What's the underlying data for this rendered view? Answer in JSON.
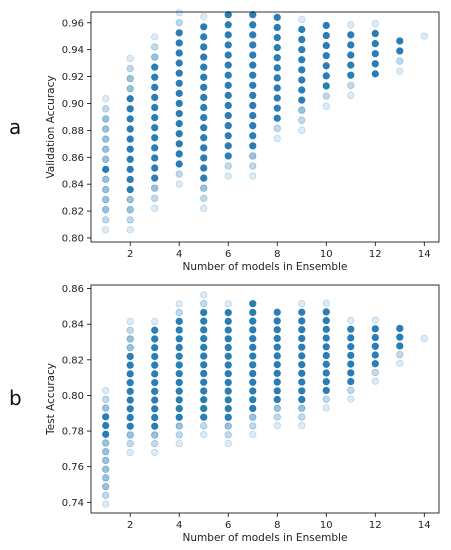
{
  "chart_data": [
    {
      "type": "scatter",
      "panel_label": "a",
      "xlabel": "Number of models in Ensemble",
      "ylabel": "Validation Accuracy",
      "xlim": [
        0.4,
        14.6
      ],
      "ylim": [
        0.797,
        0.968
      ],
      "x_ticks": [
        2,
        4,
        6,
        8,
        10,
        12,
        14
      ],
      "y_ticks": [
        0.8,
        0.82,
        0.84,
        0.86,
        0.88,
        0.9,
        0.92,
        0.94,
        0.96
      ],
      "y_tick_labels": [
        "0.80",
        "0.82",
        "0.84",
        "0.86",
        "0.88",
        "0.90",
        "0.92",
        "0.94",
        "0.96"
      ],
      "point_step": 0.0075,
      "point_color": "#1f77b4",
      "grid": false,
      "columns": [
        {
          "x": 1,
          "y_min": 0.806,
          "y_max": 0.906,
          "strong_min": 0.846,
          "strong_max": 0.856
        },
        {
          "x": 2,
          "y_min": 0.806,
          "y_max": 0.934,
          "strong_min": 0.836,
          "strong_max": 0.904
        },
        {
          "x": 3,
          "y_min": 0.822,
          "y_max": 0.95,
          "strong_min": 0.838,
          "strong_max": 0.934
        },
        {
          "x": 4,
          "y_min": 0.84,
          "y_max": 0.966,
          "strong_min": 0.848,
          "strong_max": 0.958
        },
        {
          "x": 5,
          "y_min": 0.822,
          "y_max": 0.966,
          "strong_min": 0.84,
          "strong_max": 0.958
        },
        {
          "x": 6,
          "y_min": 0.846,
          "y_max": 0.966,
          "strong_min": 0.854,
          "strong_max": 0.966
        },
        {
          "x": 7,
          "y_min": 0.846,
          "y_max": 0.966,
          "strong_min": 0.864,
          "strong_max": 0.966
        },
        {
          "x": 8,
          "y_min": 0.874,
          "y_max": 0.966,
          "strong_min": 0.884,
          "strong_max": 0.966
        },
        {
          "x": 9,
          "y_min": 0.88,
          "y_max": 0.966,
          "strong_min": 0.896,
          "strong_max": 0.958
        },
        {
          "x": 10,
          "y_min": 0.898,
          "y_max": 0.958,
          "strong_min": 0.906,
          "strong_max": 0.958
        },
        {
          "x": 11,
          "y_min": 0.906,
          "y_max": 0.958,
          "strong_min": 0.914,
          "strong_max": 0.958
        },
        {
          "x": 12,
          "y_min": 0.922,
          "y_max": 0.958,
          "strong_min": 0.922,
          "strong_max": 0.958
        },
        {
          "x": 13,
          "y_min": 0.924,
          "y_max": 0.95,
          "strong_min": 0.932,
          "strong_max": 0.95
        },
        {
          "x": 14,
          "y_min": 0.95,
          "y_max": 0.95,
          "strong_min": 1.0,
          "strong_max": 0.0
        }
      ]
    },
    {
      "type": "scatter",
      "panel_label": "b",
      "xlabel": "Number of models in Ensemble",
      "ylabel": "Test Accuracy",
      "xlim": [
        0.4,
        14.6
      ],
      "ylim": [
        0.734,
        0.862
      ],
      "x_ticks": [
        2,
        4,
        6,
        8,
        10,
        12,
        14
      ],
      "y_ticks": [
        0.74,
        0.76,
        0.78,
        0.8,
        0.82,
        0.84,
        0.86
      ],
      "y_tick_labels": [
        "0.74",
        "0.76",
        "0.78",
        "0.80",
        "0.82",
        "0.84",
        "0.86"
      ],
      "point_step": 0.0049,
      "point_color": "#1f77b4",
      "grid": false,
      "columns": [
        {
          "x": 1,
          "y_min": 0.739,
          "y_max": 0.803,
          "strong_min": 0.774,
          "strong_max": 0.788
        },
        {
          "x": 2,
          "y_min": 0.768,
          "y_max": 0.842,
          "strong_min": 0.778,
          "strong_max": 0.822
        },
        {
          "x": 3,
          "y_min": 0.768,
          "y_max": 0.842,
          "strong_min": 0.778,
          "strong_max": 0.838
        },
        {
          "x": 4,
          "y_min": 0.773,
          "y_max": 0.852,
          "strong_min": 0.783,
          "strong_max": 0.842
        },
        {
          "x": 5,
          "y_min": 0.778,
          "y_max": 0.857,
          "strong_min": 0.783,
          "strong_max": 0.847
        },
        {
          "x": 6,
          "y_min": 0.773,
          "y_max": 0.852,
          "strong_min": 0.783,
          "strong_max": 0.847
        },
        {
          "x": 7,
          "y_min": 0.778,
          "y_max": 0.852,
          "strong_min": 0.788,
          "strong_max": 0.852
        },
        {
          "x": 8,
          "y_min": 0.783,
          "y_max": 0.847,
          "strong_min": 0.793,
          "strong_max": 0.847
        },
        {
          "x": 9,
          "y_min": 0.783,
          "y_max": 0.852,
          "strong_min": 0.793,
          "strong_max": 0.847
        },
        {
          "x": 10,
          "y_min": 0.793,
          "y_max": 0.852,
          "strong_min": 0.798,
          "strong_max": 0.847
        },
        {
          "x": 11,
          "y_min": 0.798,
          "y_max": 0.842,
          "strong_min": 0.803,
          "strong_max": 0.842
        },
        {
          "x": 12,
          "y_min": 0.808,
          "y_max": 0.842,
          "strong_min": 0.813,
          "strong_max": 0.838
        },
        {
          "x": 13,
          "y_min": 0.818,
          "y_max": 0.838,
          "strong_min": 0.823,
          "strong_max": 0.838
        },
        {
          "x": 14,
          "y_min": 0.832,
          "y_max": 0.832,
          "strong_min": 1.0,
          "strong_max": 0.0
        }
      ]
    }
  ]
}
